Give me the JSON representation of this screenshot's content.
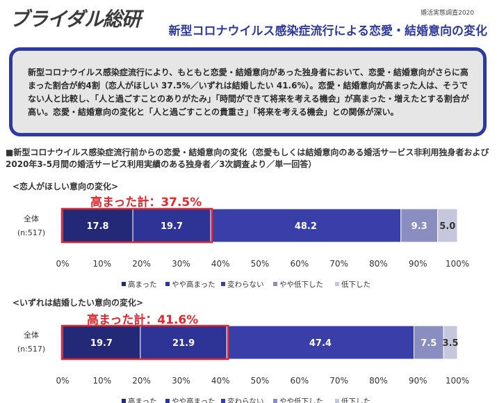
{
  "header": {
    "logo_text": "ブライダル総研",
    "survey_tag": "婚活実態調査2020",
    "title": "新型コロナウイルス感染症流行による恋愛・結婚意向の変化"
  },
  "summary": {
    "text": "新型コロナウイルス感染症流行により、もともと恋愛・結婚意向があった独身者において、恋愛・結婚意向がさらに高まった割合が約4割（恋人がほしい 37.5%／いずれは結婚したい 41.6%）。恋愛・結婚意向が高まった人は、そうでない人と比較し、「人と過ごすことのありがたみ」「時間ができて将来を考える機会」が高まった・増えたとする割合が高い。恋愛・結婚意向の変化と「人と過ごすことの貴重さ」「将来を考える機会」との関係が深い。"
  },
  "section_heading": "■新型コロナウイルス感染症流行前からの恋愛・結婚意向の変化（恋愛もしくは結婚意向のある婚活サービス非利用独身者および2020年3-5月間の婚活サービス利用実績のある独身者／3次調査より／単一回答）",
  "colors": [
    "#232877",
    "#2e3496",
    "#3a3ea8",
    "#8a8dbf",
    "#c6c7dc"
  ],
  "chart_data": [
    {
      "type": "bar",
      "orientation": "horizontal",
      "stacked": true,
      "title": "<恋人がほしい意向の変化>",
      "highlight": "高まった計：37.5%",
      "categories": [
        "全体\n(n:517)"
      ],
      "series": [
        {
          "name": "高まった",
          "values": [
            17.8
          ]
        },
        {
          "name": "やや高まった",
          "values": [
            19.7
          ]
        },
        {
          "name": "変わらない",
          "values": [
            48.2
          ]
        },
        {
          "name": "やや低下した",
          "values": [
            9.3
          ]
        },
        {
          "name": "低下した",
          "values": [
            5.0
          ]
        }
      ],
      "value_labels": [
        "17.8",
        "19.7",
        "48.2",
        "9.3",
        "5.0"
      ],
      "xlim": [
        0,
        100
      ],
      "xticks": [
        "0%",
        "10%",
        "20%",
        "30%",
        "40%",
        "50%",
        "60%",
        "70%",
        "80%",
        "90%",
        "100%"
      ],
      "legend": "bottom"
    },
    {
      "type": "bar",
      "orientation": "horizontal",
      "stacked": true,
      "title": "<いずれは結婚したい意向の変化>",
      "highlight": "高まった計：41.6%",
      "categories": [
        "全体\n(n:517)"
      ],
      "series": [
        {
          "name": "高まった",
          "values": [
            19.7
          ]
        },
        {
          "name": "やや高まった",
          "values": [
            21.9
          ]
        },
        {
          "name": "変わらない",
          "values": [
            47.4
          ]
        },
        {
          "name": "やや低下した",
          "values": [
            7.5
          ]
        },
        {
          "name": "低下した",
          "values": [
            3.5
          ]
        }
      ],
      "value_labels": [
        "19.7",
        "21.9",
        "47.4",
        "7.5",
        "3.5"
      ],
      "xlim": [
        0,
        100
      ],
      "xticks": [
        "0%",
        "10%",
        "20%",
        "30%",
        "40%",
        "50%",
        "60%",
        "70%",
        "80%",
        "90%",
        "100%"
      ],
      "legend": "bottom"
    }
  ],
  "row_label_line1": "全体",
  "row_label_line2": "(n:517)"
}
